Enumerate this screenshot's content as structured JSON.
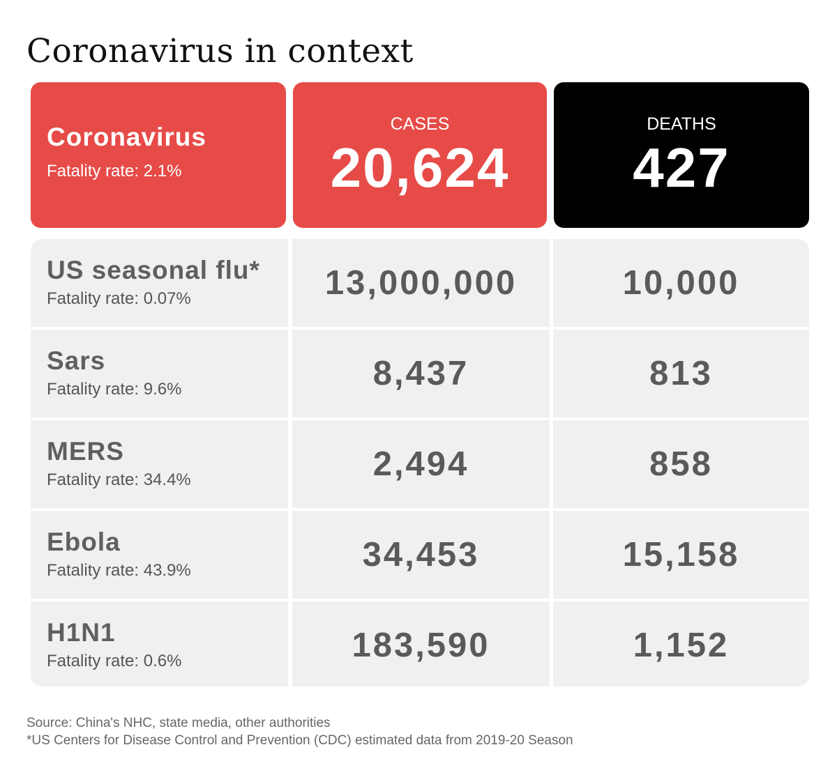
{
  "title": "Coronavirus in context",
  "highlight": {
    "name": "Coronavirus",
    "fatality_rate": "Fatality rate: 2.1%",
    "cases_label": "CASES",
    "cases_value": "20,624",
    "deaths_label": "DEATHS",
    "deaths_value": "427"
  },
  "colors": {
    "accent_red": "#e64b48",
    "black": "#000000",
    "row_gray": "#f0f0f0",
    "text_gray": "#5f5f5f"
  },
  "rows": [
    {
      "name": "US seasonal flu*",
      "fatality_rate": "Fatality rate: 0.07%",
      "cases": "13,000,000",
      "deaths": "10,000"
    },
    {
      "name": "Sars",
      "fatality_rate": "Fatality rate: 9.6%",
      "cases": "8,437",
      "deaths": "813"
    },
    {
      "name": "MERS",
      "fatality_rate": "Fatality rate: 34.4%",
      "cases": "2,494",
      "deaths": "858"
    },
    {
      "name": "Ebola",
      "fatality_rate": "Fatality rate: 43.9%",
      "cases": "34,453",
      "deaths": "15,158"
    },
    {
      "name": "H1N1",
      "fatality_rate": "Fatality rate: 0.6%",
      "cases": "183,590",
      "deaths": "1,152"
    }
  ],
  "footnotes": {
    "source": "Source: China's NHC, state media, other authorities",
    "note": "*US Centers for Disease Control and Prevention (CDC) estimated data from 2019-20 Season"
  },
  "chart_data": {
    "type": "table",
    "title": "Coronavirus in context",
    "columns": [
      "",
      "CASES",
      "DEATHS"
    ],
    "rows": [
      {
        "disease": "Coronavirus",
        "fatality_rate_pct": 2.1,
        "cases": 20624,
        "deaths": 427
      },
      {
        "disease": "US seasonal flu*",
        "fatality_rate_pct": 0.07,
        "cases": 13000000,
        "deaths": 10000
      },
      {
        "disease": "Sars",
        "fatality_rate_pct": 9.6,
        "cases": 8437,
        "deaths": 813
      },
      {
        "disease": "MERS",
        "fatality_rate_pct": 34.4,
        "cases": 2494,
        "deaths": 858
      },
      {
        "disease": "Ebola",
        "fatality_rate_pct": 43.9,
        "cases": 34453,
        "deaths": 15158
      },
      {
        "disease": "H1N1",
        "fatality_rate_pct": 0.6,
        "cases": 183590,
        "deaths": 1152
      }
    ]
  }
}
